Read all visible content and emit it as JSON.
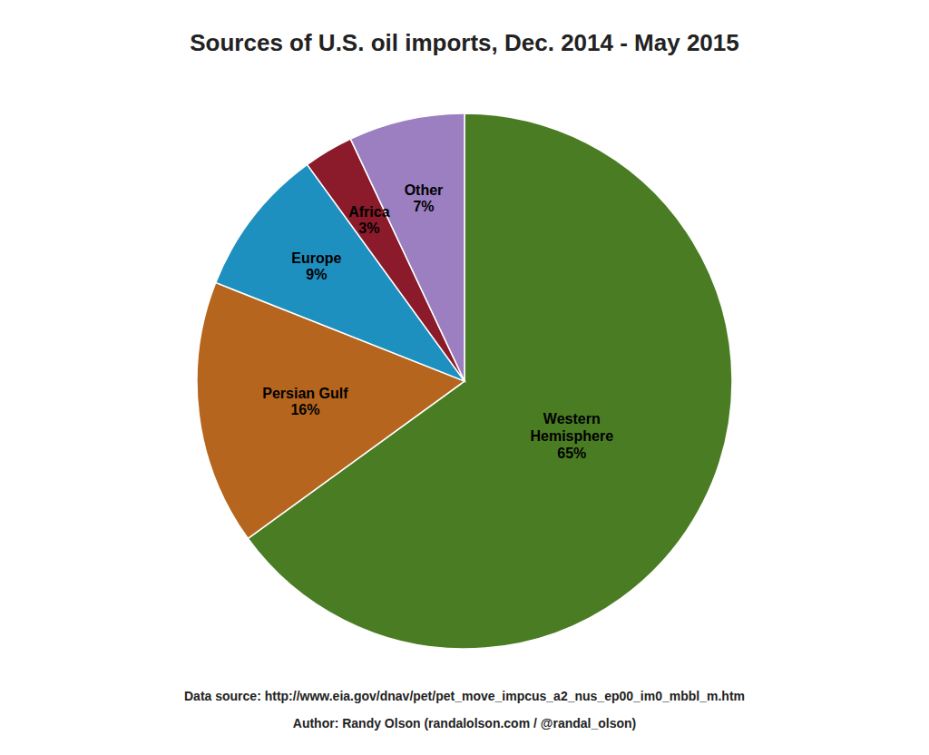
{
  "chart_data": {
    "type": "pie",
    "title": "Sources of U.S. oil imports, Dec. 2014 - May 2015",
    "categories": [
      "Western\nHemisphere",
      "Persian Gulf",
      "Europe",
      "Africa",
      "Other"
    ],
    "values": [
      65,
      16,
      9,
      3,
      7
    ],
    "value_labels": [
      "65%",
      "16%",
      "9%",
      "3%",
      "7%"
    ],
    "data_labels": true,
    "colors": [
      "#4a7c23",
      "#b5651d",
      "#1e90c0",
      "#8b1a2a",
      "#9b7fc0"
    ],
    "annotations": [
      "Data source: http://www.eia.gov/dnav/pet/pet_move_impcus_a2_nus_ep00_im0_mbbl_m.htm",
      "Author: Randy Olson (randalolson.com / @randal_olson)"
    ]
  }
}
